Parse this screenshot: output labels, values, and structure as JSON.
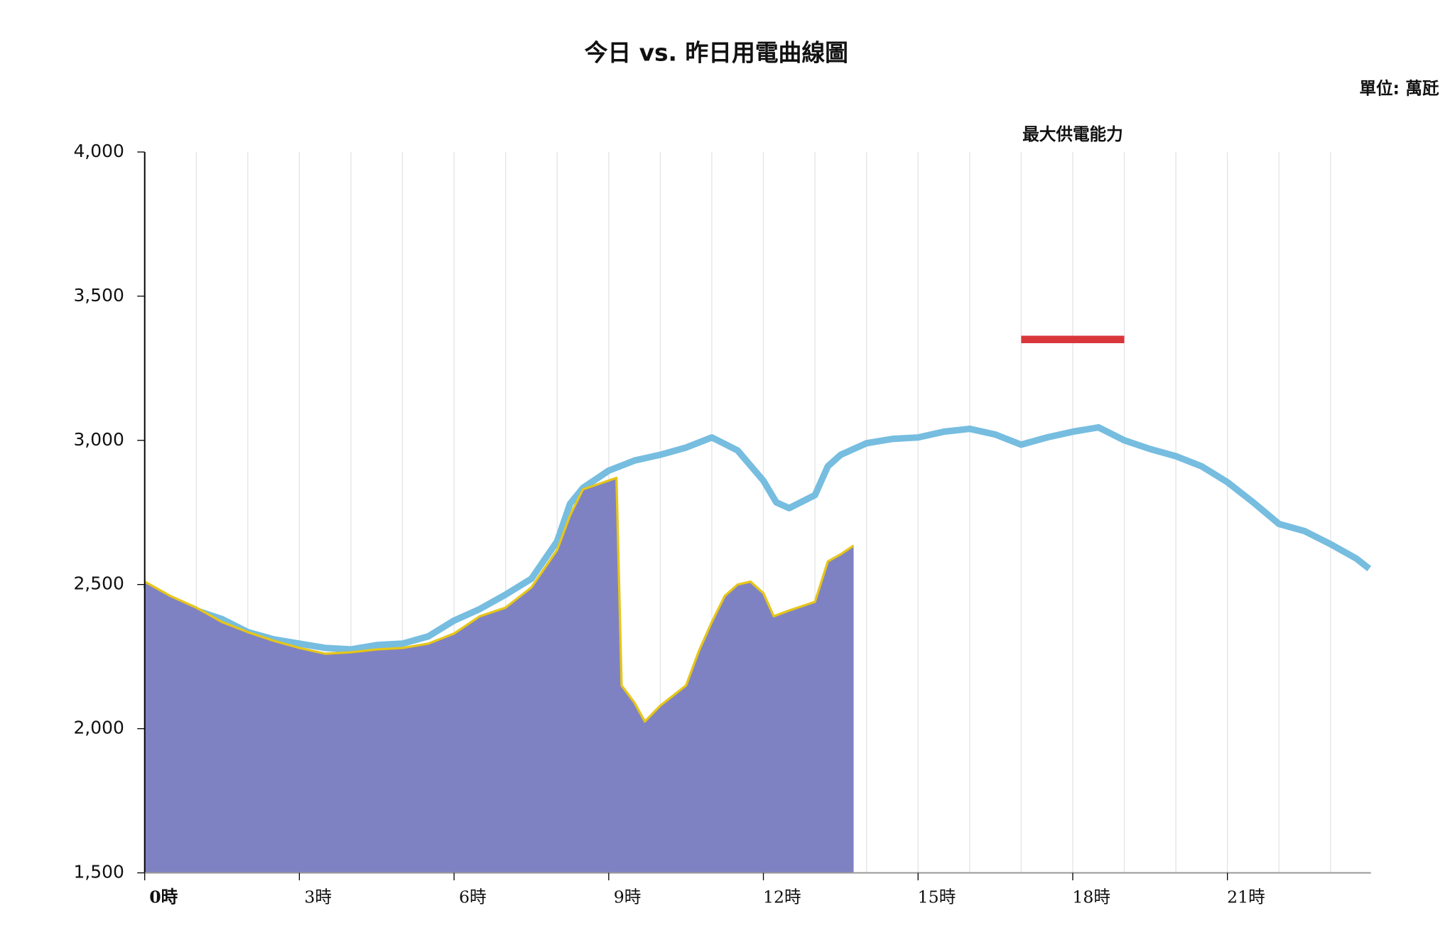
{
  "chart_data": {
    "type": "line",
    "title": "今日 vs. 昨日用電曲線圖",
    "unit_label": "單位: 萬瓩",
    "xlim": [
      0,
      24
    ],
    "xticks": [
      {
        "value": 0,
        "label": "0時"
      },
      {
        "value": 3,
        "label": "3時"
      },
      {
        "value": 6,
        "label": "6時"
      },
      {
        "value": 9,
        "label": "9時"
      },
      {
        "value": 12,
        "label": "12時"
      },
      {
        "value": 15,
        "label": "15時"
      },
      {
        "value": 18,
        "label": "18時"
      },
      {
        "value": 21,
        "label": "21時"
      }
    ],
    "x_minor_ticks": [
      1,
      2,
      4,
      5,
      7,
      8,
      10,
      11,
      13,
      14,
      16,
      17,
      19,
      20,
      22,
      23
    ],
    "ylim": [
      1500,
      4000
    ],
    "yticks": [
      {
        "value": 1500,
        "label": "1,500"
      },
      {
        "value": 2000,
        "label": "2,000"
      },
      {
        "value": 2500,
        "label": "2,500"
      },
      {
        "value": 3000,
        "label": "3,000"
      },
      {
        "value": 3500,
        "label": "3,500"
      },
      {
        "value": 4000,
        "label": "4,000"
      }
    ],
    "grid": true,
    "series": [
      {
        "color": "#76bde0",
        "style": "line",
        "x": [
          0,
          0.5,
          1,
          1.5,
          2,
          2.5,
          3,
          3.5,
          4,
          4.5,
          5,
          5.5,
          6,
          6.5,
          7,
          7.5,
          8,
          8.25,
          8.5,
          9,
          9.5,
          10,
          10.5,
          11,
          11.5,
          12,
          12.25,
          12.5,
          13,
          13.25,
          13.5,
          14,
          14.5,
          15,
          15.5,
          16,
          16.5,
          17,
          17.5,
          18,
          18.5,
          19,
          19.5,
          20,
          20.5,
          21,
          21.5,
          22,
          22.5,
          23,
          23.5,
          23.75
        ],
        "values": [
          2500,
          2440,
          2410,
          2380,
          2335,
          2310,
          2295,
          2280,
          2275,
          2290,
          2295,
          2320,
          2375,
          2415,
          2465,
          2520,
          2650,
          2780,
          2835,
          2895,
          2930,
          2950,
          2975,
          3010,
          2965,
          2860,
          2785,
          2765,
          2810,
          2910,
          2950,
          2990,
          3005,
          3010,
          3030,
          3040,
          3020,
          2985,
          3010,
          3030,
          3045,
          3000,
          2970,
          2945,
          2910,
          2855,
          2785,
          2710,
          2685,
          2640,
          2590,
          2555
        ]
      },
      {
        "color": "#e6c619",
        "fill": "#7f82c2",
        "style": "area",
        "x": [
          0,
          0.5,
          1,
          1.5,
          2,
          2.5,
          3,
          3.5,
          4,
          4.5,
          5,
          5.5,
          6,
          6.5,
          7,
          7.5,
          8,
          8.25,
          8.5,
          9.15,
          9.25,
          9.5,
          9.7,
          10,
          10.5,
          10.75,
          11,
          11.25,
          11.5,
          11.75,
          12,
          12.2,
          12.5,
          13,
          13.25,
          13.5,
          13.75
        ],
        "values": [
          2510,
          2460,
          2420,
          2370,
          2335,
          2305,
          2280,
          2260,
          2265,
          2275,
          2280,
          2295,
          2330,
          2390,
          2420,
          2490,
          2620,
          2740,
          2830,
          2870,
          2150,
          2090,
          2025,
          2080,
          2150,
          2270,
          2370,
          2460,
          2500,
          2510,
          2470,
          2390,
          2410,
          2440,
          2580,
          2605,
          2635
        ]
      }
    ],
    "max_supply": {
      "label": "最大供電能力",
      "color": "#d9363b",
      "value": 3350,
      "x": [
        17,
        19
      ]
    }
  }
}
